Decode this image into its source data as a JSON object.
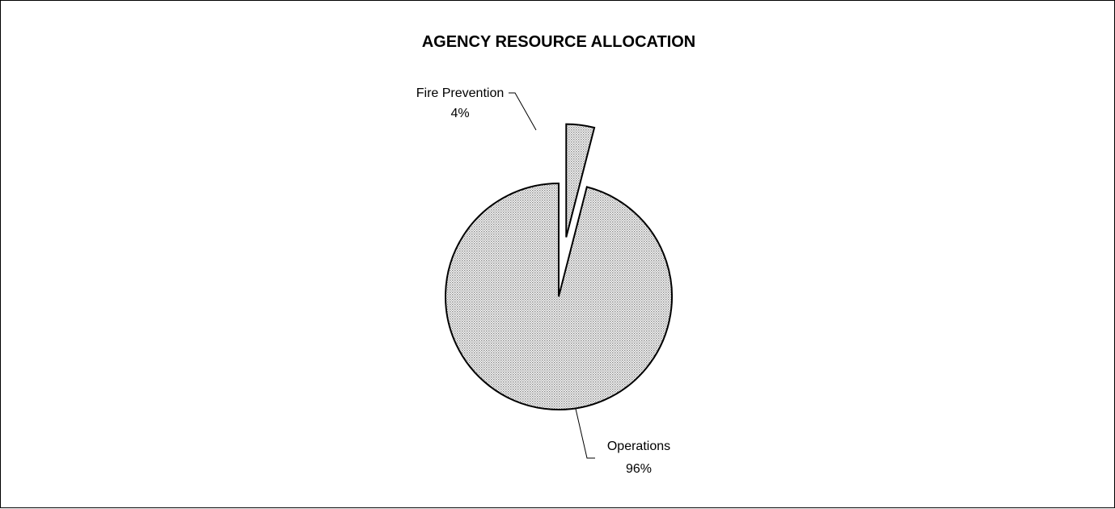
{
  "chart_data": {
    "type": "pie",
    "title": "AGENCY RESOURCE ALLOCATION",
    "slices": [
      {
        "name": "Fire Prevention",
        "value": 4,
        "label": "4%",
        "exploded": true
      },
      {
        "name": "Operations",
        "value": 96,
        "label": "96%",
        "exploded": false
      }
    ],
    "fill": "dotted gray pattern",
    "legend": "none"
  }
}
